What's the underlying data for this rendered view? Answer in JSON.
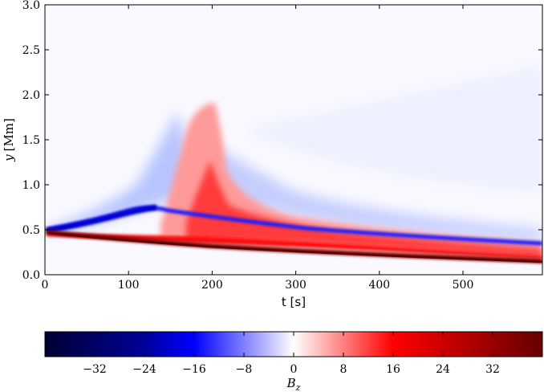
{
  "chart_data": [
    {
      "type": "heatmap",
      "xlabel": "t [s]",
      "ylabel_var": "y",
      "ylabel_unit": "[Mm]",
      "xlim": [
        0,
        595
      ],
      "ylim": [
        0,
        3.0
      ],
      "xticks": [
        0,
        100,
        200,
        300,
        400,
        500
      ],
      "xtick_labels": [
        "0",
        "100",
        "200",
        "300",
        "400",
        "500"
      ],
      "yticks": [
        0.0,
        0.5,
        1.0,
        1.5,
        2.0,
        2.5,
        3.0
      ],
      "ytick_labels": [
        "0.0",
        "0.5",
        "1.0",
        "1.5",
        "2.0",
        "2.5",
        "3.0"
      ],
      "grid": false,
      "features": [
        {
          "name": "dark red band",
          "value": 40,
          "t": [
            0,
            100,
            200,
            300,
            400,
            500,
            595
          ],
          "y": [
            0.46,
            0.38,
            0.33,
            0.28,
            0.24,
            0.2,
            0.17
          ]
        },
        {
          "name": "red lower lobe",
          "value": 20,
          "t": [
            0,
            100,
            200,
            300,
            400,
            500,
            595
          ],
          "y": [
            0.5,
            0.45,
            0.43,
            0.38,
            0.34,
            0.3,
            0.26
          ]
        },
        {
          "name": "blue front",
          "value": -28,
          "t": [
            0,
            50,
            100,
            150,
            400,
            500,
            595
          ],
          "y": [
            0.52,
            0.63,
            0.8,
            1.05,
            0.48,
            0.4,
            0.35
          ]
        }
      ]
    },
    {
      "type": "colorbar",
      "label_var": "B",
      "label_sub": "z",
      "range": [
        -40,
        40
      ],
      "ticks": [
        -32,
        -24,
        -16,
        -8,
        0,
        8,
        16,
        24,
        32
      ],
      "tick_labels": [
        "−32",
        "−24",
        "−16",
        "−8",
        "0",
        "8",
        "16",
        "24",
        "32"
      ],
      "colormap": [
        "#000033",
        "#0000ff",
        "#ffffff",
        "#ff0000",
        "#660000"
      ]
    }
  ]
}
